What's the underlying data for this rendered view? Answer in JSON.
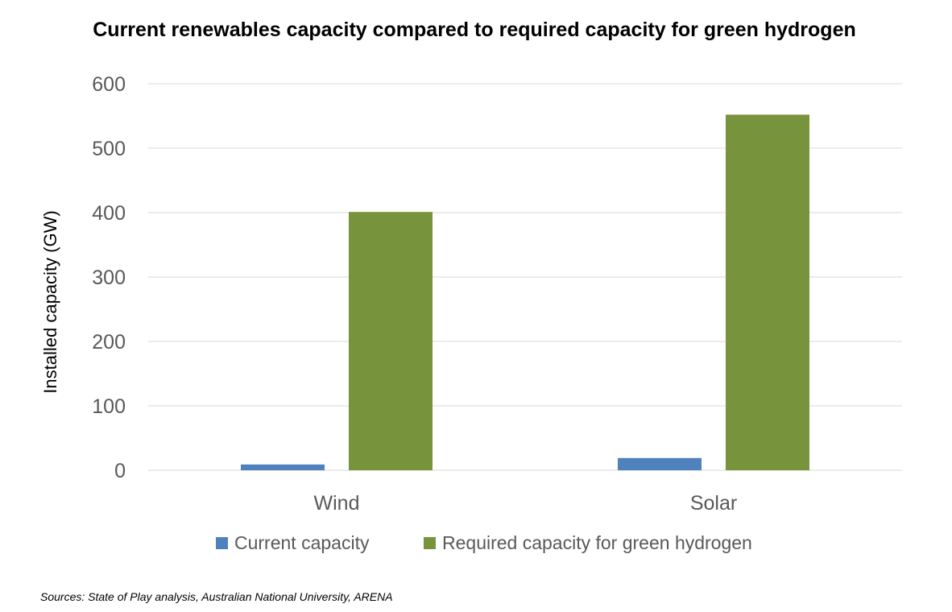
{
  "chart_data": {
    "type": "bar",
    "title": "Current renewables capacity compared to required capacity for green hydrogen",
    "xlabel": "",
    "ylabel": "Installed capacity (GW)",
    "categories": [
      "Wind",
      "Solar"
    ],
    "series": [
      {
        "name": "Current capacity",
        "values": [
          9,
          19
        ],
        "color": "#4F81BD"
      },
      {
        "name": "Required capacity for green hydrogen",
        "values": [
          401,
          552
        ],
        "color": "#77933C"
      }
    ],
    "ylim": [
      0,
      600
    ],
    "yticks": [
      0,
      100,
      200,
      300,
      400,
      500,
      600
    ],
    "grid": true,
    "legend": "bottom",
    "source": "Sources: State of Play analysis, Australian National University, ARENA"
  }
}
